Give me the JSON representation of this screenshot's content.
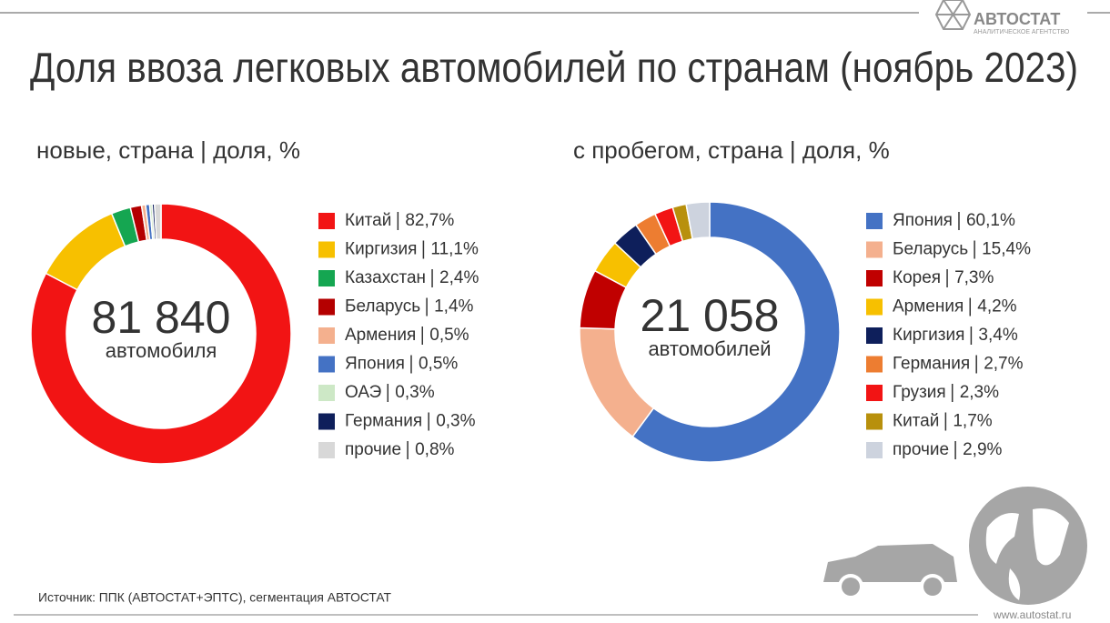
{
  "header": {
    "logo": "АВТОСТАТ",
    "logo_sub": "АНАЛИТИЧЕСКОЕ АГЕНТСТВО",
    "title": "Доля ввоза легковых автомобилей по странам (ноябрь 2023)"
  },
  "chart_data": [
    {
      "type": "pie",
      "subtitle": "новые, страна | доля, %",
      "center_text": "81 840",
      "center_subtext": "автомобиля",
      "categories": [
        "Китай",
        "Киргизия",
        "Казахстан",
        "Беларусь",
        "Армения",
        "Япония",
        "ОАЭ",
        "Германия",
        "прочие"
      ],
      "values": [
        82.7,
        11.1,
        2.4,
        1.4,
        0.5,
        0.5,
        0.3,
        0.3,
        0.8
      ],
      "value_labels": [
        "82,7%",
        "11,1%",
        "2,4%",
        "1,4%",
        "0,5%",
        "0,5%",
        "0,3%",
        "0,3%",
        "0,8%"
      ],
      "colors": [
        "#f21414",
        "#f7c000",
        "#15a651",
        "#b40000",
        "#f4b08e",
        "#4472c4",
        "#cde8c6",
        "#0e1f5b",
        "#d8d8d8"
      ]
    },
    {
      "type": "pie",
      "subtitle": "с пробегом, страна | доля, %",
      "center_text": "21 058",
      "center_subtext": "автомобилей",
      "categories": [
        "Япония",
        "Беларусь",
        "Корея",
        "Армения",
        "Киргизия",
        "Германия",
        "Грузия",
        "Китай",
        "прочие"
      ],
      "values": [
        60.1,
        15.4,
        7.3,
        4.2,
        3.4,
        2.7,
        2.3,
        1.7,
        2.9
      ],
      "value_labels": [
        "60,1%",
        "15,4%",
        "7,3%",
        "4,2%",
        "3,4%",
        "2,7%",
        "2,3%",
        "1,7%",
        "2,9%"
      ],
      "colors": [
        "#4472c4",
        "#f4b08e",
        "#c00000",
        "#f7c000",
        "#0e1f5b",
        "#ed7d31",
        "#f21414",
        "#b8900c",
        "#cdd3de"
      ]
    }
  ],
  "footer": {
    "source": "Источник: ППК (АВТОСТАТ+ЭПТС), сегментация АВТОСТАТ",
    "site": "www.autostat.ru"
  }
}
